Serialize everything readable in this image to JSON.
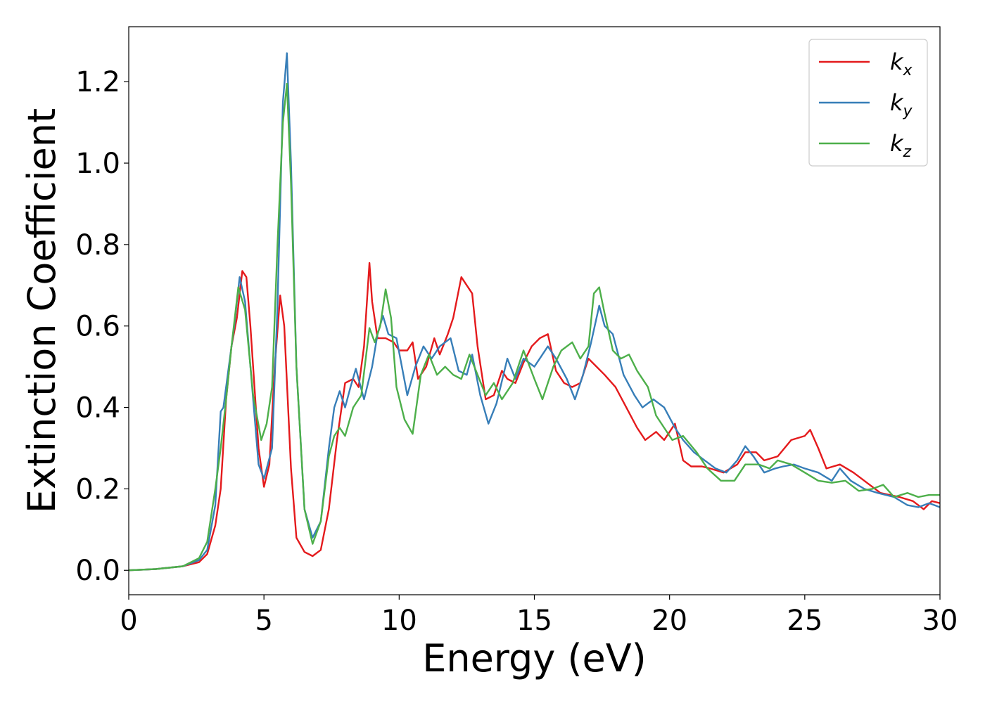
{
  "chart_data": {
    "type": "line",
    "xlabel": "Energy (eV)",
    "ylabel": "Extinction Coefficient",
    "xlim": [
      0,
      30
    ],
    "ylim": [
      -0.06,
      1.335
    ],
    "xticks": [
      0,
      5,
      10,
      15,
      20,
      25,
      30
    ],
    "xtick_labels": [
      "0",
      "5",
      "10",
      "15",
      "20",
      "25",
      "30"
    ],
    "yticks": [
      0.0,
      0.2,
      0.4,
      0.6,
      0.8,
      1.0,
      1.2
    ],
    "ytick_labels": [
      "0.0",
      "0.2",
      "0.4",
      "0.6",
      "0.8",
      "1.0",
      "1.2"
    ],
    "grid": false,
    "legend_position": "top-right",
    "series": [
      {
        "name": "k_x",
        "label_base": "k",
        "label_sub": "x",
        "color": "#e41a1c",
        "points": [
          [
            0,
            0
          ],
          [
            1,
            0.003
          ],
          [
            2,
            0.01
          ],
          [
            2.6,
            0.02
          ],
          [
            2.9,
            0.04
          ],
          [
            3.2,
            0.11
          ],
          [
            3.4,
            0.2
          ],
          [
            3.6,
            0.42
          ],
          [
            3.8,
            0.55
          ],
          [
            4.0,
            0.62
          ],
          [
            4.2,
            0.735
          ],
          [
            4.35,
            0.72
          ],
          [
            4.5,
            0.6
          ],
          [
            4.8,
            0.3
          ],
          [
            5.0,
            0.205
          ],
          [
            5.2,
            0.26
          ],
          [
            5.4,
            0.5
          ],
          [
            5.6,
            0.675
          ],
          [
            5.75,
            0.6
          ],
          [
            6.0,
            0.25
          ],
          [
            6.2,
            0.08
          ],
          [
            6.5,
            0.045
          ],
          [
            6.8,
            0.035
          ],
          [
            7.1,
            0.05
          ],
          [
            7.4,
            0.15
          ],
          [
            7.7,
            0.32
          ],
          [
            8.0,
            0.46
          ],
          [
            8.3,
            0.47
          ],
          [
            8.5,
            0.45
          ],
          [
            8.7,
            0.55
          ],
          [
            8.9,
            0.755
          ],
          [
            9.0,
            0.66
          ],
          [
            9.2,
            0.57
          ],
          [
            9.5,
            0.57
          ],
          [
            9.8,
            0.56
          ],
          [
            10.0,
            0.54
          ],
          [
            10.3,
            0.54
          ],
          [
            10.5,
            0.56
          ],
          [
            10.7,
            0.47
          ],
          [
            11.0,
            0.5
          ],
          [
            11.3,
            0.57
          ],
          [
            11.5,
            0.53
          ],
          [
            11.8,
            0.58
          ],
          [
            12.0,
            0.62
          ],
          [
            12.3,
            0.72
          ],
          [
            12.5,
            0.7
          ],
          [
            12.7,
            0.68
          ],
          [
            12.9,
            0.55
          ],
          [
            13.2,
            0.42
          ],
          [
            13.5,
            0.43
          ],
          [
            13.8,
            0.49
          ],
          [
            14.0,
            0.47
          ],
          [
            14.3,
            0.46
          ],
          [
            14.6,
            0.51
          ],
          [
            14.9,
            0.55
          ],
          [
            15.2,
            0.57
          ],
          [
            15.5,
            0.58
          ],
          [
            15.8,
            0.49
          ],
          [
            16.1,
            0.46
          ],
          [
            16.4,
            0.45
          ],
          [
            16.7,
            0.46
          ],
          [
            17.0,
            0.52
          ],
          [
            17.3,
            0.5
          ],
          [
            17.6,
            0.48
          ],
          [
            18.0,
            0.45
          ],
          [
            18.4,
            0.4
          ],
          [
            18.8,
            0.35
          ],
          [
            19.1,
            0.32
          ],
          [
            19.5,
            0.34
          ],
          [
            19.8,
            0.32
          ],
          [
            20.2,
            0.36
          ],
          [
            20.5,
            0.27
          ],
          [
            20.8,
            0.255
          ],
          [
            21.2,
            0.255
          ],
          [
            21.5,
            0.25
          ],
          [
            22.0,
            0.24
          ],
          [
            22.5,
            0.26
          ],
          [
            22.8,
            0.29
          ],
          [
            23.2,
            0.29
          ],
          [
            23.5,
            0.27
          ],
          [
            24.0,
            0.28
          ],
          [
            24.5,
            0.32
          ],
          [
            25.0,
            0.33
          ],
          [
            25.2,
            0.345
          ],
          [
            25.5,
            0.3
          ],
          [
            25.8,
            0.25
          ],
          [
            26.3,
            0.26
          ],
          [
            26.8,
            0.24
          ],
          [
            27.2,
            0.22
          ],
          [
            27.8,
            0.19
          ],
          [
            28.5,
            0.18
          ],
          [
            29.0,
            0.17
          ],
          [
            29.4,
            0.15
          ],
          [
            29.7,
            0.17
          ],
          [
            30,
            0.165
          ]
        ]
      },
      {
        "name": "k_y",
        "label_base": "k",
        "label_sub": "y",
        "color": "#377eb8",
        "points": [
          [
            0,
            0
          ],
          [
            1,
            0.003
          ],
          [
            2,
            0.01
          ],
          [
            2.6,
            0.025
          ],
          [
            2.9,
            0.05
          ],
          [
            3.2,
            0.16
          ],
          [
            3.4,
            0.39
          ],
          [
            3.5,
            0.4
          ],
          [
            3.7,
            0.5
          ],
          [
            3.9,
            0.6
          ],
          [
            4.1,
            0.72
          ],
          [
            4.3,
            0.66
          ],
          [
            4.6,
            0.42
          ],
          [
            4.8,
            0.26
          ],
          [
            5.0,
            0.225
          ],
          [
            5.3,
            0.3
          ],
          [
            5.5,
            0.65
          ],
          [
            5.7,
            1.15
          ],
          [
            5.85,
            1.27
          ],
          [
            6.0,
            1.0
          ],
          [
            6.2,
            0.5
          ],
          [
            6.5,
            0.15
          ],
          [
            6.8,
            0.08
          ],
          [
            7.1,
            0.12
          ],
          [
            7.4,
            0.3
          ],
          [
            7.6,
            0.4
          ],
          [
            7.8,
            0.44
          ],
          [
            8.0,
            0.4
          ],
          [
            8.2,
            0.45
          ],
          [
            8.4,
            0.495
          ],
          [
            8.7,
            0.42
          ],
          [
            9.0,
            0.5
          ],
          [
            9.2,
            0.58
          ],
          [
            9.4,
            0.625
          ],
          [
            9.6,
            0.58
          ],
          [
            9.9,
            0.57
          ],
          [
            10.1,
            0.5
          ],
          [
            10.3,
            0.43
          ],
          [
            10.6,
            0.5
          ],
          [
            10.9,
            0.55
          ],
          [
            11.2,
            0.52
          ],
          [
            11.5,
            0.55
          ],
          [
            11.9,
            0.57
          ],
          [
            12.2,
            0.49
          ],
          [
            12.5,
            0.48
          ],
          [
            12.7,
            0.53
          ],
          [
            13.0,
            0.43
          ],
          [
            13.3,
            0.36
          ],
          [
            13.6,
            0.41
          ],
          [
            14.0,
            0.52
          ],
          [
            14.3,
            0.47
          ],
          [
            14.6,
            0.52
          ],
          [
            15.0,
            0.5
          ],
          [
            15.5,
            0.55
          ],
          [
            15.8,
            0.52
          ],
          [
            16.2,
            0.47
          ],
          [
            16.5,
            0.42
          ],
          [
            16.8,
            0.48
          ],
          [
            17.1,
            0.56
          ],
          [
            17.4,
            0.65
          ],
          [
            17.6,
            0.6
          ],
          [
            17.9,
            0.58
          ],
          [
            18.3,
            0.48
          ],
          [
            18.7,
            0.43
          ],
          [
            19.0,
            0.4
          ],
          [
            19.4,
            0.42
          ],
          [
            19.8,
            0.4
          ],
          [
            20.2,
            0.35
          ],
          [
            20.5,
            0.32
          ],
          [
            20.9,
            0.29
          ],
          [
            21.3,
            0.27
          ],
          [
            21.7,
            0.25
          ],
          [
            22.1,
            0.24
          ],
          [
            22.5,
            0.27
          ],
          [
            22.8,
            0.305
          ],
          [
            23.1,
            0.28
          ],
          [
            23.5,
            0.24
          ],
          [
            23.9,
            0.25
          ],
          [
            24.2,
            0.255
          ],
          [
            24.6,
            0.26
          ],
          [
            25.0,
            0.25
          ],
          [
            25.5,
            0.24
          ],
          [
            26.0,
            0.22
          ],
          [
            26.3,
            0.25
          ],
          [
            26.7,
            0.22
          ],
          [
            27.2,
            0.2
          ],
          [
            27.7,
            0.19
          ],
          [
            28.3,
            0.18
          ],
          [
            28.8,
            0.16
          ],
          [
            29.2,
            0.155
          ],
          [
            29.6,
            0.165
          ],
          [
            30,
            0.155
          ]
        ]
      },
      {
        "name": "k_z",
        "label_base": "k",
        "label_sub": "z",
        "color": "#4daf4a",
        "points": [
          [
            0,
            0
          ],
          [
            1,
            0.003
          ],
          [
            2,
            0.01
          ],
          [
            2.6,
            0.03
          ],
          [
            2.9,
            0.07
          ],
          [
            3.2,
            0.2
          ],
          [
            3.4,
            0.3
          ],
          [
            3.6,
            0.42
          ],
          [
            3.8,
            0.55
          ],
          [
            4.05,
            0.695
          ],
          [
            4.3,
            0.64
          ],
          [
            4.6,
            0.43
          ],
          [
            4.9,
            0.32
          ],
          [
            5.1,
            0.36
          ],
          [
            5.3,
            0.45
          ],
          [
            5.5,
            0.8
          ],
          [
            5.7,
            1.1
          ],
          [
            5.85,
            1.195
          ],
          [
            6.0,
            0.95
          ],
          [
            6.2,
            0.5
          ],
          [
            6.5,
            0.15
          ],
          [
            6.8,
            0.065
          ],
          [
            7.1,
            0.12
          ],
          [
            7.4,
            0.28
          ],
          [
            7.6,
            0.33
          ],
          [
            7.8,
            0.35
          ],
          [
            8.0,
            0.33
          ],
          [
            8.3,
            0.4
          ],
          [
            8.6,
            0.43
          ],
          [
            8.9,
            0.595
          ],
          [
            9.1,
            0.56
          ],
          [
            9.3,
            0.6
          ],
          [
            9.5,
            0.69
          ],
          [
            9.7,
            0.62
          ],
          [
            9.9,
            0.45
          ],
          [
            10.2,
            0.37
          ],
          [
            10.5,
            0.335
          ],
          [
            10.8,
            0.48
          ],
          [
            11.1,
            0.53
          ],
          [
            11.4,
            0.48
          ],
          [
            11.7,
            0.5
          ],
          [
            12.0,
            0.48
          ],
          [
            12.3,
            0.47
          ],
          [
            12.6,
            0.53
          ],
          [
            12.9,
            0.48
          ],
          [
            13.2,
            0.43
          ],
          [
            13.5,
            0.46
          ],
          [
            13.8,
            0.42
          ],
          [
            14.2,
            0.46
          ],
          [
            14.6,
            0.54
          ],
          [
            15.0,
            0.47
          ],
          [
            15.3,
            0.42
          ],
          [
            15.7,
            0.5
          ],
          [
            16.0,
            0.54
          ],
          [
            16.4,
            0.56
          ],
          [
            16.7,
            0.52
          ],
          [
            17.0,
            0.55
          ],
          [
            17.2,
            0.68
          ],
          [
            17.4,
            0.695
          ],
          [
            17.6,
            0.63
          ],
          [
            17.9,
            0.54
          ],
          [
            18.2,
            0.52
          ],
          [
            18.5,
            0.53
          ],
          [
            18.8,
            0.49
          ],
          [
            19.2,
            0.45
          ],
          [
            19.5,
            0.38
          ],
          [
            19.8,
            0.35
          ],
          [
            20.1,
            0.32
          ],
          [
            20.5,
            0.33
          ],
          [
            21.0,
            0.29
          ],
          [
            21.4,
            0.25
          ],
          [
            21.9,
            0.22
          ],
          [
            22.4,
            0.22
          ],
          [
            22.8,
            0.26
          ],
          [
            23.3,
            0.26
          ],
          [
            23.7,
            0.25
          ],
          [
            24.0,
            0.27
          ],
          [
            24.5,
            0.26
          ],
          [
            25.0,
            0.24
          ],
          [
            25.5,
            0.22
          ],
          [
            26.0,
            0.215
          ],
          [
            26.5,
            0.22
          ],
          [
            27.0,
            0.195
          ],
          [
            27.5,
            0.2
          ],
          [
            27.9,
            0.21
          ],
          [
            28.3,
            0.18
          ],
          [
            28.8,
            0.19
          ],
          [
            29.2,
            0.18
          ],
          [
            29.6,
            0.185
          ],
          [
            30,
            0.185
          ]
        ]
      }
    ]
  }
}
